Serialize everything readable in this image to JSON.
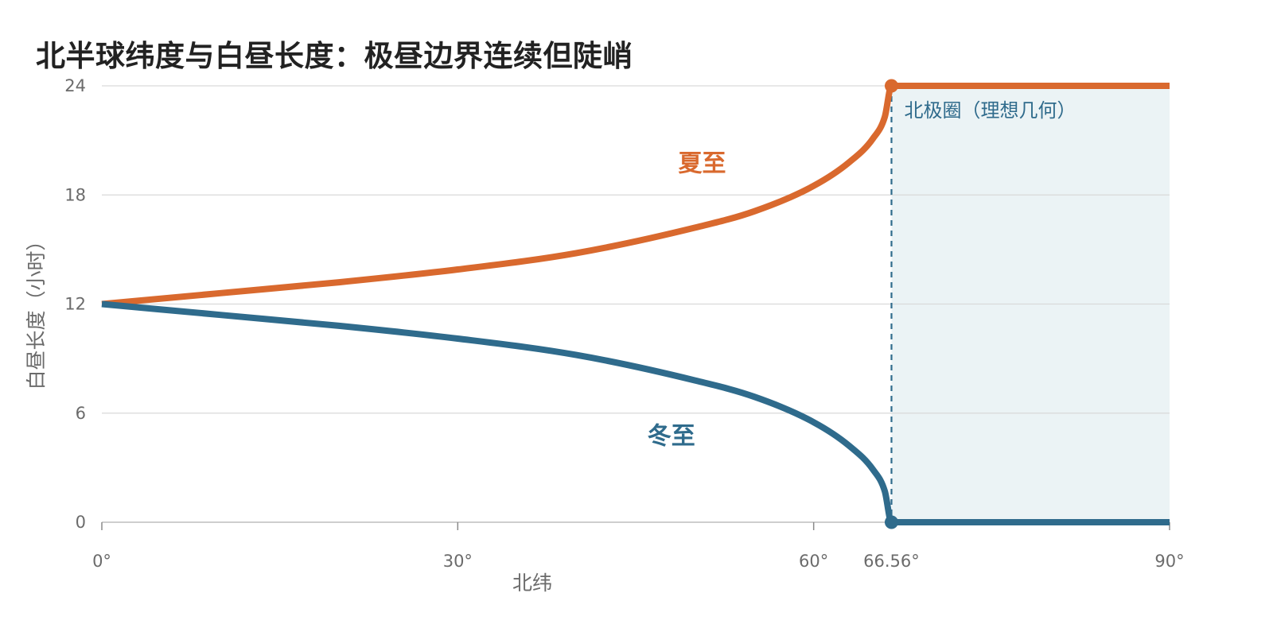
{
  "chart_data": {
    "type": "line",
    "title": "北半球纬度与白昼长度：极昼边界连续但陡峭",
    "xlabel": "北纬",
    "ylabel": "白昼长度（小时）",
    "xlim": [
      0,
      90
    ],
    "ylim": [
      0,
      24
    ],
    "x_ticks": [
      {
        "value": 0,
        "label": "0°"
      },
      {
        "value": 30,
        "label": "30°"
      },
      {
        "value": 60,
        "label": "60°"
      },
      {
        "value": 66.56,
        "label": "66.56°"
      },
      {
        "value": 90,
        "label": "90°"
      }
    ],
    "y_ticks": [
      {
        "value": 0,
        "label": "0"
      },
      {
        "value": 6,
        "label": "6"
      },
      {
        "value": 12,
        "label": "12"
      },
      {
        "value": 18,
        "label": "18"
      },
      {
        "value": 24,
        "label": "24"
      }
    ],
    "grid": "horizontal",
    "legend": "none",
    "series": [
      {
        "name": "夏至",
        "color": "#d9692e",
        "x": [
          0,
          10,
          20,
          30,
          40,
          50,
          55,
          60,
          63,
          65,
          66,
          66.56,
          70,
          80,
          90
        ],
        "y": [
          12.0,
          12.6,
          13.2,
          13.9,
          14.8,
          16.2,
          17.1,
          18.5,
          19.8,
          21.1,
          22.3,
          24.0,
          24.0,
          24.0,
          24.0
        ]
      },
      {
        "name": "冬至",
        "color": "#2f6b8c",
        "x": [
          0,
          10,
          20,
          30,
          40,
          50,
          55,
          60,
          63,
          65,
          66,
          66.56,
          70,
          80,
          90
        ],
        "y": [
          12.0,
          11.4,
          10.8,
          10.1,
          9.2,
          7.8,
          6.9,
          5.5,
          4.2,
          2.9,
          1.7,
          0.0,
          0.0,
          0.0,
          0.0
        ]
      }
    ],
    "annotations": [
      {
        "type": "vline",
        "x": 66.56,
        "style": "dashed",
        "color": "#2f6b8c"
      },
      {
        "type": "region",
        "x0": 66.56,
        "x1": 90,
        "color": "#ebf3f5",
        "label": "北极圈（理想几何）"
      },
      {
        "type": "point",
        "x": 66.56,
        "y": 24,
        "color": "#d9692e"
      },
      {
        "type": "point",
        "x": 66.56,
        "y": 0,
        "color": "#2f6b8c"
      }
    ]
  }
}
